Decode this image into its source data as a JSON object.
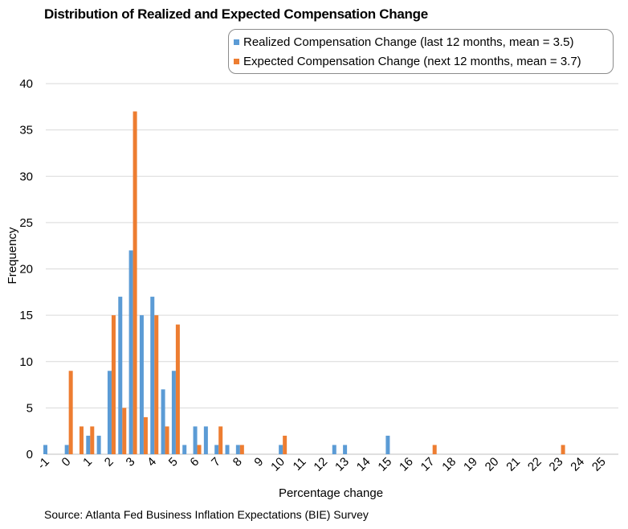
{
  "chart_data": {
    "type": "bar",
    "title": "Distribution of Realized and Expected Compensation Change",
    "xlabel": "Percentage change",
    "ylabel": "Frequency",
    "ylim": [
      0,
      40
    ],
    "yticks": [
      "0",
      "5",
      "10",
      "15",
      "20",
      "25",
      "30",
      "35",
      "40"
    ],
    "xtick_labels": [
      "-1",
      "0",
      "1",
      "2",
      "3",
      "4",
      "5",
      "6",
      "7",
      "8",
      "9",
      "10",
      "11",
      "12",
      "13",
      "14",
      "15",
      "16",
      "17",
      "18",
      "19",
      "20",
      "21",
      "22",
      "23",
      "24",
      "25"
    ],
    "grid": "horizontal",
    "legend_position": "top-right",
    "series": [
      {
        "name": "Realized Compensation Change (last 12 months, mean = 3.5)",
        "color": "#5b9bd5",
        "points": [
          {
            "x": -1,
            "y": 1
          },
          {
            "x": 0,
            "y": 1
          },
          {
            "x": 1,
            "y": 2
          },
          {
            "x": 1.5,
            "y": 2
          },
          {
            "x": 2,
            "y": 9
          },
          {
            "x": 2.5,
            "y": 17
          },
          {
            "x": 3,
            "y": 22
          },
          {
            "x": 3.5,
            "y": 15
          },
          {
            "x": 4,
            "y": 17
          },
          {
            "x": 4.5,
            "y": 7
          },
          {
            "x": 5,
            "y": 9
          },
          {
            "x": 5.5,
            "y": 1
          },
          {
            "x": 6,
            "y": 3
          },
          {
            "x": 6.5,
            "y": 3
          },
          {
            "x": 7,
            "y": 1
          },
          {
            "x": 7.5,
            "y": 1
          },
          {
            "x": 8,
            "y": 1
          },
          {
            "x": 10,
            "y": 1
          },
          {
            "x": 12.5,
            "y": 1
          },
          {
            "x": 13,
            "y": 1
          },
          {
            "x": 15,
            "y": 2
          }
        ]
      },
      {
        "name": "Expected Compensation Change (next 12 months, mean = 3.7)",
        "color": "#ed7d31",
        "points": [
          {
            "x": 0,
            "y": 9
          },
          {
            "x": 0.5,
            "y": 3
          },
          {
            "x": 1,
            "y": 3
          },
          {
            "x": 2,
            "y": 15
          },
          {
            "x": 2.5,
            "y": 5
          },
          {
            "x": 3,
            "y": 37
          },
          {
            "x": 3.5,
            "y": 4
          },
          {
            "x": 4,
            "y": 15
          },
          {
            "x": 4.5,
            "y": 3
          },
          {
            "x": 5,
            "y": 14
          },
          {
            "x": 6,
            "y": 1
          },
          {
            "x": 7,
            "y": 3
          },
          {
            "x": 8,
            "y": 1
          },
          {
            "x": 10,
            "y": 2
          },
          {
            "x": 17,
            "y": 1
          },
          {
            "x": 23,
            "y": 1
          }
        ]
      }
    ],
    "source": "Source: Atlanta Fed Business Inflation Expectations (BIE) Survey"
  }
}
